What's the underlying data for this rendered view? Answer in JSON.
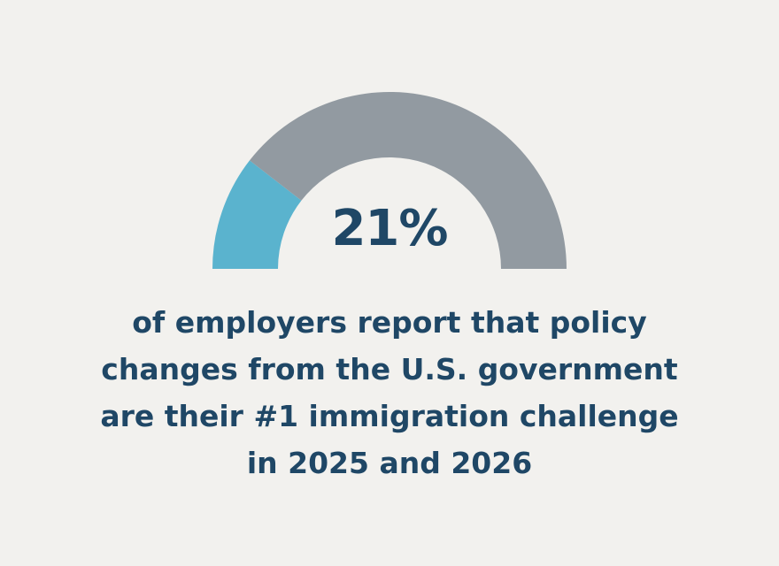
{
  "chart_data": {
    "type": "pie",
    "values": [
      21,
      79
    ],
    "value_label": "21%",
    "colors": {
      "highlight": "#5ab3ce",
      "remainder": "#929aa1",
      "text": "#1f4766",
      "background": "#f2f1ee"
    }
  },
  "caption": {
    "lines": [
      "of employers report that policy",
      "changes from the U.S. government",
      "are their #1 immigration challenge",
      "in 2025 and 2026"
    ]
  }
}
